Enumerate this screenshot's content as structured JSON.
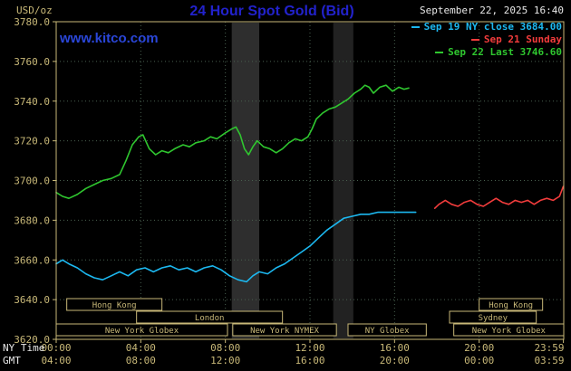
{
  "colors": {
    "background": "#000000",
    "title_blue": "#2222cc",
    "link_blue": "#2a46d8",
    "axis_tan": "#c8b878",
    "text_white": "#e8e8e8",
    "grid_green": "#49604f"
  },
  "header": {
    "y_unit": "USD/oz",
    "title": "24 Hour Spot Gold (Bid)",
    "watermark": "www.kitco.com",
    "datetime": "September 22, 2025 16:40"
  },
  "legend": {
    "items": [
      {
        "label": "Sep 19 NY close 3684.00",
        "color": "#1cb8f0"
      },
      {
        "label": "Sep 21 Sunday",
        "color": "#f23c3c"
      },
      {
        "label": "Sep 22 Last 3746.60",
        "color": "#2fc62f"
      }
    ]
  },
  "axes": {
    "ny_caption": "NY Time",
    "gmt_caption": "GMT"
  },
  "chart_data": {
    "type": "line",
    "title": "24 Hour Spot Gold (Bid)",
    "ylabel": "USD/oz",
    "x_range": [
      0,
      24
    ],
    "y_range": [
      3620,
      3780
    ],
    "y_ticks": [
      3620,
      3640,
      3660,
      3680,
      3700,
      3720,
      3740,
      3760,
      3780
    ],
    "x_ticks": [
      {
        "h": 0,
        "ny": "00:00",
        "gmt": "04:00"
      },
      {
        "h": 4,
        "ny": "04:00",
        "gmt": "08:00"
      },
      {
        "h": 8,
        "ny": "08:00",
        "gmt": "12:00"
      },
      {
        "h": 12,
        "ny": "12:00",
        "gmt": "16:00"
      },
      {
        "h": 16,
        "ny": "16:00",
        "gmt": "20:00"
      },
      {
        "h": 20,
        "ny": "20:00",
        "gmt": "00:00"
      },
      {
        "h": 23.983,
        "ny": "23:59",
        "gmt": "03:59"
      }
    ],
    "bands": [
      {
        "start": 8.3,
        "end": 9.6,
        "color": "#2e2e2e"
      },
      {
        "start": 13.1,
        "end": 14.05,
        "color": "#222222"
      }
    ],
    "sessions": [
      {
        "row": 0,
        "label": "Hong Kong",
        "start": 0.5,
        "end": 5.0
      },
      {
        "row": 0,
        "label": "Hong Kong",
        "start": 20.0,
        "end": 23.0
      },
      {
        "row": 1,
        "label": "London",
        "start": 3.8,
        "end": 10.7
      },
      {
        "row": 1,
        "label": "Sydney",
        "start": 18.6,
        "end": 22.7
      },
      {
        "row": 2,
        "label": "New York Globex",
        "start": 0.0,
        "end": 8.1
      },
      {
        "row": 2,
        "label": "New York NYMEX",
        "start": 8.35,
        "end": 13.25
      },
      {
        "row": 2,
        "label": "NY Globex",
        "start": 13.8,
        "end": 17.5
      },
      {
        "row": 2,
        "label": "New York Globex",
        "start": 18.8,
        "end": 24.0
      }
    ],
    "series": [
      {
        "id": "sep19",
        "name": "Sep 19 NY close",
        "color": "#1cb8f0",
        "close": 3684.0,
        "points": [
          [
            0,
            3658
          ],
          [
            0.3,
            3660
          ],
          [
            0.6,
            3658
          ],
          [
            1,
            3656
          ],
          [
            1.4,
            3653
          ],
          [
            1.8,
            3651
          ],
          [
            2.2,
            3650
          ],
          [
            2.6,
            3652
          ],
          [
            3,
            3654
          ],
          [
            3.4,
            3652
          ],
          [
            3.8,
            3655
          ],
          [
            4.2,
            3656
          ],
          [
            4.6,
            3654
          ],
          [
            5,
            3656
          ],
          [
            5.4,
            3657
          ],
          [
            5.8,
            3655
          ],
          [
            6.2,
            3656
          ],
          [
            6.6,
            3654
          ],
          [
            7,
            3656
          ],
          [
            7.4,
            3657
          ],
          [
            7.8,
            3655
          ],
          [
            8.2,
            3652
          ],
          [
            8.6,
            3650
          ],
          [
            9,
            3649
          ],
          [
            9.3,
            3652
          ],
          [
            9.6,
            3654
          ],
          [
            10,
            3653
          ],
          [
            10.4,
            3656
          ],
          [
            10.8,
            3658
          ],
          [
            11.2,
            3661
          ],
          [
            11.6,
            3664
          ],
          [
            12,
            3667
          ],
          [
            12.4,
            3671
          ],
          [
            12.8,
            3675
          ],
          [
            13.2,
            3678
          ],
          [
            13.6,
            3681
          ],
          [
            14,
            3682
          ],
          [
            14.4,
            3683
          ],
          [
            14.8,
            3683
          ],
          [
            15.2,
            3684
          ],
          [
            15.6,
            3684
          ],
          [
            16,
            3684
          ],
          [
            16.5,
            3684
          ],
          [
            17,
            3684
          ]
        ]
      },
      {
        "id": "sep21",
        "name": "Sep 21 Sunday",
        "color": "#f23c3c",
        "points": [
          [
            17.9,
            3686
          ],
          [
            18.1,
            3688
          ],
          [
            18.4,
            3690
          ],
          [
            18.7,
            3688
          ],
          [
            19,
            3687
          ],
          [
            19.3,
            3689
          ],
          [
            19.6,
            3690
          ],
          [
            19.9,
            3688
          ],
          [
            20.2,
            3687
          ],
          [
            20.5,
            3689
          ],
          [
            20.8,
            3691
          ],
          [
            21.1,
            3689
          ],
          [
            21.4,
            3688
          ],
          [
            21.7,
            3690
          ],
          [
            22,
            3689
          ],
          [
            22.3,
            3690
          ],
          [
            22.6,
            3688
          ],
          [
            22.9,
            3690
          ],
          [
            23.2,
            3691
          ],
          [
            23.5,
            3690
          ],
          [
            23.8,
            3692
          ],
          [
            23.98,
            3697
          ]
        ]
      },
      {
        "id": "sep22",
        "name": "Sep 22 Last",
        "color": "#2fc62f",
        "last": 3746.6,
        "points": [
          [
            0,
            3694
          ],
          [
            0.3,
            3692
          ],
          [
            0.6,
            3691
          ],
          [
            1,
            3693
          ],
          [
            1.4,
            3696
          ],
          [
            1.8,
            3698
          ],
          [
            2.2,
            3700
          ],
          [
            2.6,
            3701
          ],
          [
            3,
            3703
          ],
          [
            3.3,
            3710
          ],
          [
            3.6,
            3718
          ],
          [
            3.9,
            3722
          ],
          [
            4.1,
            3723
          ],
          [
            4.4,
            3716
          ],
          [
            4.7,
            3713
          ],
          [
            5,
            3715
          ],
          [
            5.3,
            3714
          ],
          [
            5.6,
            3716
          ],
          [
            6,
            3718
          ],
          [
            6.3,
            3717
          ],
          [
            6.6,
            3719
          ],
          [
            7,
            3720
          ],
          [
            7.3,
            3722
          ],
          [
            7.6,
            3721
          ],
          [
            8,
            3724
          ],
          [
            8.3,
            3726
          ],
          [
            8.5,
            3727
          ],
          [
            8.7,
            3723
          ],
          [
            8.9,
            3716
          ],
          [
            9.1,
            3713
          ],
          [
            9.3,
            3717
          ],
          [
            9.5,
            3720
          ],
          [
            9.8,
            3717
          ],
          [
            10.1,
            3716
          ],
          [
            10.4,
            3714
          ],
          [
            10.7,
            3716
          ],
          [
            11,
            3719
          ],
          [
            11.3,
            3721
          ],
          [
            11.6,
            3720
          ],
          [
            11.9,
            3722
          ],
          [
            12.1,
            3726
          ],
          [
            12.3,
            3731
          ],
          [
            12.6,
            3734
          ],
          [
            12.9,
            3736
          ],
          [
            13.2,
            3737
          ],
          [
            13.5,
            3739
          ],
          [
            13.8,
            3741
          ],
          [
            14.1,
            3744
          ],
          [
            14.4,
            3746
          ],
          [
            14.6,
            3748
          ],
          [
            14.8,
            3747
          ],
          [
            15,
            3744
          ],
          [
            15.3,
            3747
          ],
          [
            15.6,
            3748
          ],
          [
            15.9,
            3745
          ],
          [
            16.2,
            3747
          ],
          [
            16.45,
            3746
          ],
          [
            16.67,
            3746.6
          ]
        ]
      }
    ]
  }
}
